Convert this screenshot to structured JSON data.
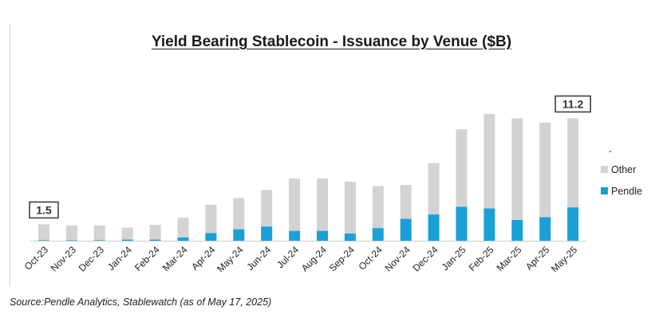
{
  "title": "Yield Bearing Stablecoin - Issuance by Venue ($B)",
  "source": "Source:Pendle Analytics, Stablewatch (as of May 17, 2025)",
  "colors": {
    "other": "#d3d3d3",
    "pendle": "#1aa0d6",
    "axis": "#cfcfcf"
  },
  "chart_data": {
    "type": "bar",
    "stacked": true,
    "title": "Yield Bearing Stablecoin - Issuance by Venue ($B)",
    "categories": [
      "Oct-23",
      "Nov-23",
      "Dec-23",
      "Jan-24",
      "Feb-24",
      "Mar-24",
      "Apr-24",
      "May-24",
      "Jun-24",
      "Jul-24",
      "Aug-24",
      "Sep-24",
      "Oct-24",
      "Nov-24",
      "Dec-24",
      "Jan-25",
      "Feb-25",
      "Mar-25",
      "Apr-25",
      "May-25"
    ],
    "series": [
      {
        "name": "Pendle",
        "values": [
          0.05,
          0.05,
          0.05,
          0.1,
          0.1,
          0.3,
          0.7,
          1.05,
          1.3,
          0.9,
          0.9,
          0.65,
          1.15,
          2.0,
          2.4,
          3.1,
          2.95,
          1.9,
          2.15,
          3.05
        ]
      },
      {
        "name": "Other",
        "values": [
          1.45,
          1.35,
          1.35,
          1.1,
          1.35,
          1.8,
          2.6,
          2.85,
          3.35,
          4.8,
          4.8,
          4.75,
          3.85,
          3.1,
          4.7,
          7.1,
          8.65,
          9.3,
          8.65,
          8.15
        ]
      }
    ],
    "ylim": [
      0,
      15
    ],
    "grid": false,
    "legend_position": "right",
    "annotations": [
      {
        "category": "Oct-23",
        "label": "1.5"
      },
      {
        "category": "May-25",
        "label": "11.2"
      }
    ]
  },
  "legend": {
    "dash": "-",
    "items": [
      "Other",
      "Pendle"
    ]
  }
}
